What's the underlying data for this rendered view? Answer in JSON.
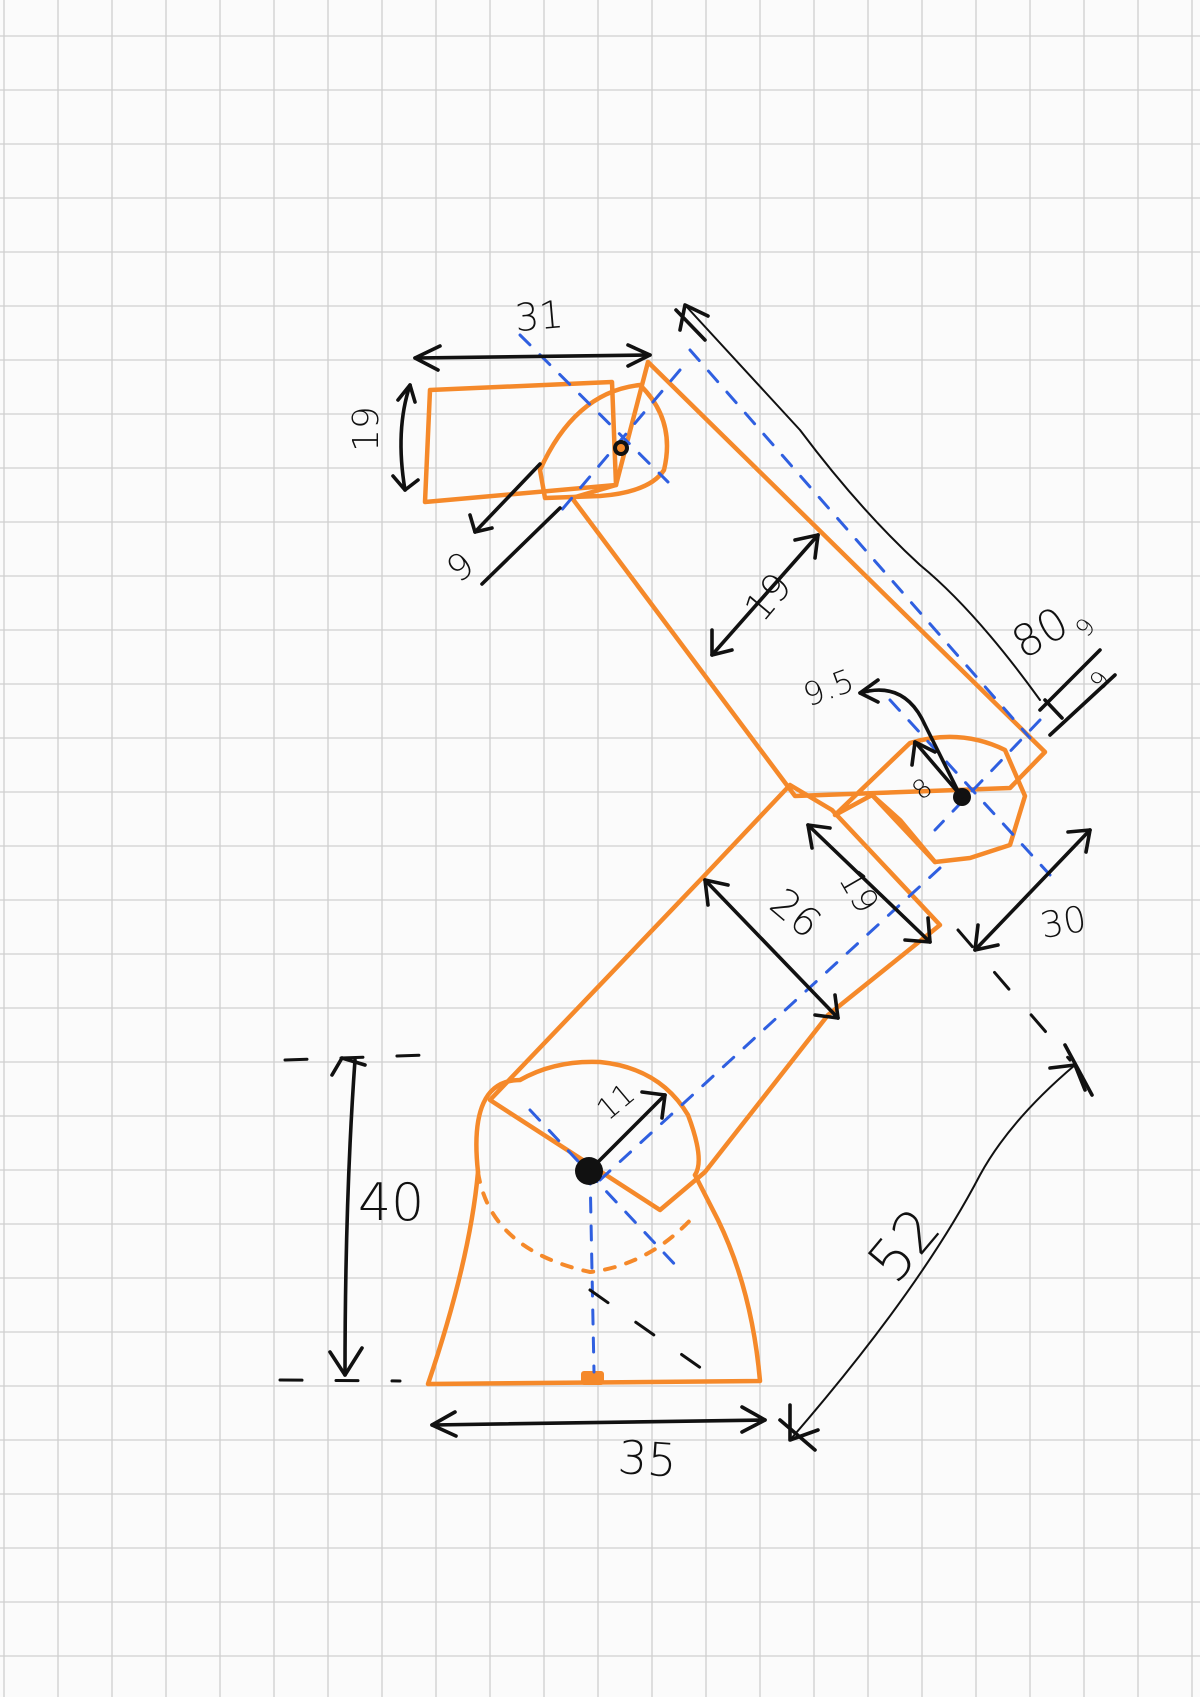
{
  "dimensions": {
    "top_width": "31",
    "top_height": "19",
    "top_pivot_radius": "9",
    "upper_arm_width": "19",
    "upper_arm_length": "80",
    "end_small": "9",
    "end_small_2": "9",
    "elbow_radius": "9.5",
    "elbow_radius_inner": "8",
    "elbow_block_width": "19",
    "lower_arm_width": "26",
    "lower_arm_end": "30",
    "base_pivot_radius": "11",
    "base_height": "40",
    "lower_arm_length": "52",
    "base_width": "35"
  },
  "colors": {
    "part_outline": "#f5892a",
    "center_axis": "#2f5fe0",
    "dimension_ink": "#111111",
    "grid": "#cfcfcf",
    "paper": "#fbfbfb"
  }
}
